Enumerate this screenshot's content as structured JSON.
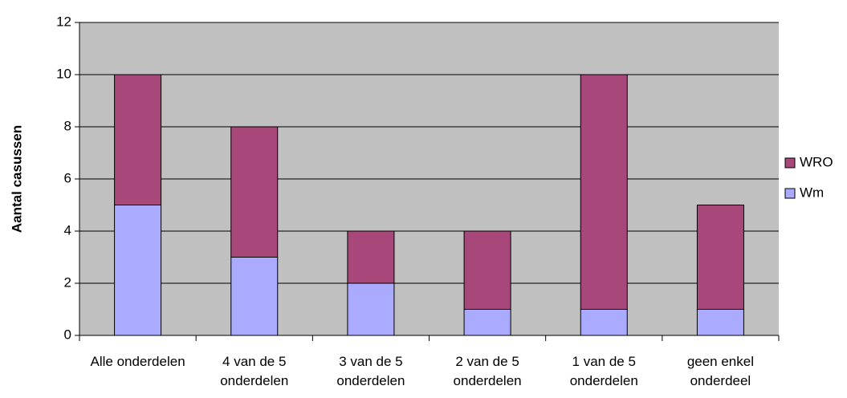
{
  "chart_data": {
    "type": "stacked_bar",
    "y_label": "Aantal casussen",
    "categories": [
      "Alle onderdelen",
      "4 van de 5 onderdelen",
      "3 van de 5 onderdelen",
      "2 van de 5 onderdelen",
      "1 van de 5 onderdelen",
      "geen enkel onderdeel"
    ],
    "series": [
      {
        "name": "Wm",
        "color": "#aaaaff",
        "values": [
          5,
          3,
          2,
          1,
          1,
          1
        ]
      },
      {
        "name": "WRO",
        "color": "#a8487a",
        "values": [
          5,
          5,
          2,
          3,
          9,
          4
        ]
      }
    ],
    "ylim": [
      0,
      12
    ],
    "yticks": [
      0,
      2,
      4,
      6,
      8,
      10,
      12
    ],
    "grid": true,
    "legend": "right"
  }
}
